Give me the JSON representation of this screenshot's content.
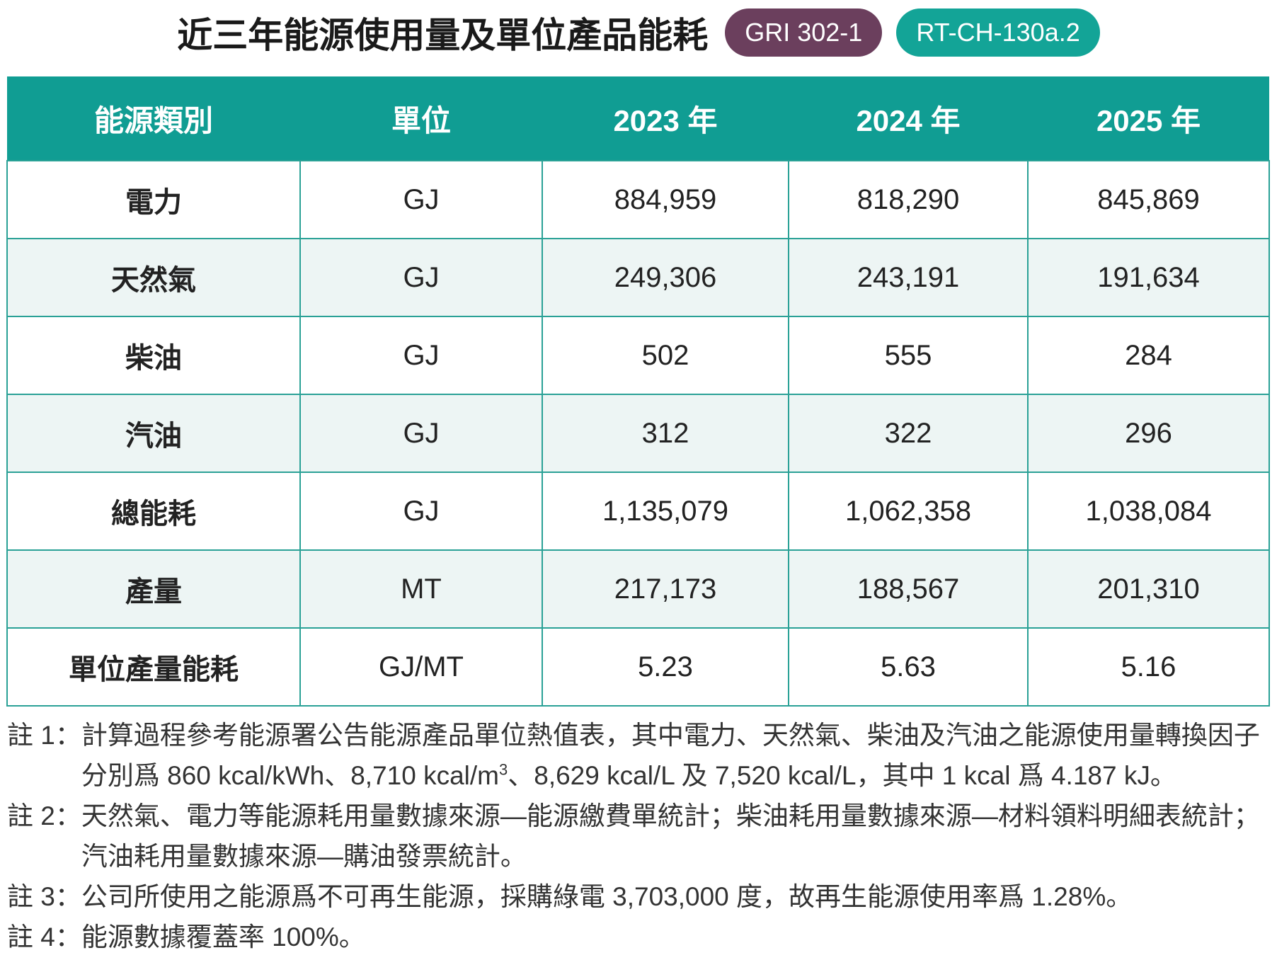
{
  "header": {
    "title": "近三年能源使用量及單位產品能耗",
    "badges": [
      "GRI 302-1",
      "RT-CH-130a.2"
    ]
  },
  "table": {
    "columns": [
      "能源類別",
      "單位",
      "2023 年",
      "2024 年",
      "2025 年"
    ],
    "rows": [
      [
        "電力",
        "GJ",
        "884,959",
        "818,290",
        "845,869"
      ],
      [
        "天然氣",
        "GJ",
        "249,306",
        "243,191",
        "191,634"
      ],
      [
        "柴油",
        "GJ",
        "502",
        "555",
        "284"
      ],
      [
        "汽油",
        "GJ",
        "312",
        "322",
        "296"
      ],
      [
        "總能耗",
        "GJ",
        "1,135,079",
        "1,062,358",
        "1,038,084"
      ],
      [
        "產量",
        "MT",
        "217,173",
        "188,567",
        "201,310"
      ],
      [
        "單位產量能耗",
        "GJ/MT",
        "5.23",
        "5.63",
        "5.16"
      ]
    ]
  },
  "notes": [
    {
      "label": "註 1：",
      "text": "計算過程參考能源署公告能源產品單位熱值表，其中電力、天然氣、柴油及汽油之能源使用量轉換因子分別爲 860 kcal/kWh、8,710 kcal/m",
      "superscript": "3",
      "text_after": "、8,629 kcal/L 及 7,520 kcal/L，其中 1 kcal 爲 4.187 kJ。"
    },
    {
      "label": "註 2：",
      "text": "天然氣、電力等能源耗用量數據來源—能源繳費單統計；柴油耗用量數據來源—材料領料明細表統計；汽油耗用量數據來源—購油發票統計。"
    },
    {
      "label": "註 3：",
      "text": "公司所使用之能源爲不可再生能源，採購綠電 3,703,000 度，故再生能源使用率爲 1.28%。"
    },
    {
      "label": "註 4：",
      "text": "能源數據覆蓋率 100%。"
    }
  ]
}
